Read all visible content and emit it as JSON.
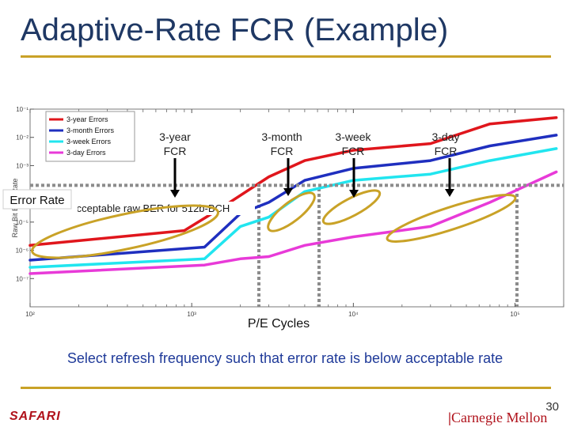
{
  "slide": {
    "title": "Adaptive-Rate FCR (Example)",
    "caption": "Select refresh frequency such that error rate is below acceptable rate",
    "page_number": "30",
    "footer_left": "SAFARI",
    "footer_right": "Carnegie Mellon",
    "accent_color": "#c9a227",
    "title_color": "#1f3864",
    "caption_color": "#1f3a99"
  },
  "annotations": {
    "error_rate_label": "Error Rate",
    "acceptable_label": "Acceptable raw BER for 512b-BCH",
    "arrows": [
      {
        "id": "3-year",
        "text1": "3-year",
        "text2": "FCR"
      },
      {
        "id": "3-month",
        "text1": "3-month",
        "text2": "FCR"
      },
      {
        "id": "3-week",
        "text1": "3-week",
        "text2": "FCR"
      },
      {
        "id": "3-day",
        "text1": "3-day",
        "text2": "FCR"
      }
    ]
  },
  "chart_data": {
    "type": "line",
    "xscale": "log",
    "yscale": "log",
    "xlabel": "P/E Cycles",
    "ylabel": "Raw Bit Error Rate",
    "xlim": [
      100,
      200000
    ],
    "ylim": [
      1e-08,
      0.1
    ],
    "xticks": [
      "10²",
      "10³",
      "10⁴",
      "10⁵"
    ],
    "yticks": [
      "10⁻¹",
      "10⁻²",
      "10⁻³",
      "10⁻⁴",
      "10⁻⁵",
      "10⁻⁶",
      "10⁻⁷"
    ],
    "threshold": 0.0002,
    "legend_position": "top-left",
    "series": [
      {
        "name": "3-year Errors",
        "color": "#e0161c",
        "points": [
          [
            100,
            1.5e-06
          ],
          [
            900,
            5e-06
          ],
          [
            1500,
            3e-05
          ],
          [
            3000,
            0.0004
          ],
          [
            5000,
            0.0015
          ],
          [
            10000,
            0.0035
          ],
          [
            30000,
            0.006
          ],
          [
            70000,
            0.03
          ],
          [
            180000,
            0.05
          ]
        ]
      },
      {
        "name": "3-month Errors",
        "color": "#1f2fbf",
        "points": [
          [
            100,
            4.5e-07
          ],
          [
            1200,
            1.3e-06
          ],
          [
            2000,
            2e-05
          ],
          [
            3000,
            5e-05
          ],
          [
            5000,
            0.0003
          ],
          [
            10000,
            0.0008
          ],
          [
            30000,
            0.0015
          ],
          [
            70000,
            0.005
          ],
          [
            180000,
            0.012
          ]
        ]
      },
      {
        "name": "3-week Errors",
        "color": "#21e5ef",
        "points": [
          [
            100,
            2.5e-07
          ],
          [
            1200,
            5e-07
          ],
          [
            2000,
            7e-06
          ],
          [
            3000,
            1.5e-05
          ],
          [
            5000,
            0.00012
          ],
          [
            10000,
            0.0003
          ],
          [
            30000,
            0.0005
          ],
          [
            70000,
            0.0015
          ],
          [
            180000,
            0.004
          ]
        ]
      },
      {
        "name": "3-day Errors",
        "color": "#e83ad8",
        "points": [
          [
            100,
            1.5e-07
          ],
          [
            1200,
            3e-07
          ],
          [
            2000,
            5e-07
          ],
          [
            3000,
            6e-07
          ],
          [
            5000,
            1.5e-06
          ],
          [
            10000,
            3e-06
          ],
          [
            30000,
            7e-06
          ],
          [
            70000,
            5e-05
          ],
          [
            180000,
            0.0006
          ]
        ]
      }
    ]
  }
}
